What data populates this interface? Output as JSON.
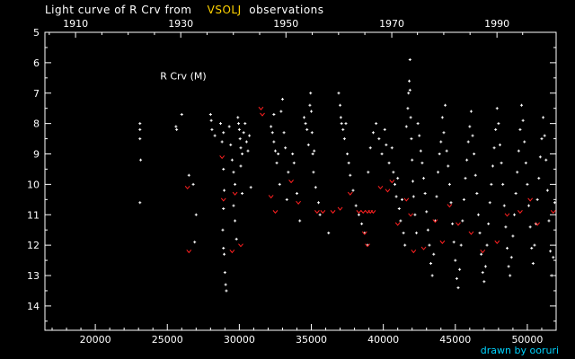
{
  "header": {
    "title_prefix": "Light curve of R Crv from",
    "title_source": "VSOLJ",
    "title_suffix": "observations"
  },
  "footer": {
    "credit": "drawn by ooruri"
  },
  "chart_data": {
    "type": "scatter",
    "title": "Light curve of R Crv from VSOLJ observations",
    "annotation": "R Crv (M)",
    "xlim": [
      16500,
      52000
    ],
    "ylim": [
      5,
      14.8
    ],
    "y_inverted": true,
    "x_ticks": [
      20000,
      25000,
      30000,
      35000,
      40000,
      45000,
      50000
    ],
    "x_tick_labels": [
      "20000",
      "25000",
      "30000",
      "35000",
      "40000",
      "45000",
      "50000"
    ],
    "top_ticks_jd": [
      18628,
      25933,
      33238,
      40587,
      47892
    ],
    "top_tick_labels": [
      "1910",
      "1930",
      "1950",
      "1970",
      "1990"
    ],
    "y_ticks": [
      5,
      6,
      7,
      8,
      9,
      10,
      11,
      12,
      13,
      14
    ],
    "y_tick_labels": [
      "5",
      "6",
      "7",
      "8",
      "9",
      "10",
      "11",
      "12",
      "13",
      "14"
    ],
    "colors": {
      "axis": "#ffffff",
      "observation": "#ffffff",
      "upper_limit": "#ff2020",
      "source": "#ffd300",
      "credit": "#00d4ff"
    },
    "series": [
      {
        "name": "observations",
        "marker": "dot",
        "points": [
          [
            23100,
            8.0
          ],
          [
            23100,
            8.2
          ],
          [
            23100,
            8.5
          ],
          [
            23150,
            9.2
          ],
          [
            23100,
            10.6
          ],
          [
            25600,
            8.1
          ],
          [
            25650,
            8.2
          ],
          [
            26000,
            7.7
          ],
          [
            26500,
            9.7
          ],
          [
            26800,
            10.0
          ],
          [
            27000,
            11.0
          ],
          [
            26900,
            11.9
          ],
          [
            28000,
            7.7
          ],
          [
            28050,
            7.9
          ],
          [
            28100,
            8.2
          ],
          [
            28300,
            8.4
          ],
          [
            28700,
            8.0
          ],
          [
            28800,
            8.6
          ],
          [
            28900,
            8.3
          ],
          [
            28900,
            9.5
          ],
          [
            28950,
            10.2
          ],
          [
            28900,
            10.8
          ],
          [
            28850,
            11.5
          ],
          [
            28900,
            12.1
          ],
          [
            28950,
            12.3
          ],
          [
            29000,
            12.9
          ],
          [
            29050,
            13.3
          ],
          [
            29100,
            13.5
          ],
          [
            29300,
            8.1
          ],
          [
            29400,
            8.7
          ],
          [
            29500,
            9.2
          ],
          [
            29600,
            9.6
          ],
          [
            29700,
            10.0
          ],
          [
            29600,
            10.7
          ],
          [
            29700,
            11.2
          ],
          [
            29800,
            11.8
          ],
          [
            29900,
            7.8
          ],
          [
            29950,
            8.0
          ],
          [
            30000,
            8.2
          ],
          [
            30050,
            8.5
          ],
          [
            30100,
            8.8
          ],
          [
            30200,
            9.0
          ],
          [
            30300,
            8.3
          ],
          [
            30400,
            8.0
          ],
          [
            30500,
            8.6
          ],
          [
            30600,
            8.9
          ],
          [
            30700,
            8.4
          ],
          [
            30100,
            9.4
          ],
          [
            30200,
            10.3
          ],
          [
            30800,
            10.1
          ],
          [
            32200,
            8.1
          ],
          [
            32300,
            8.3
          ],
          [
            32400,
            8.6
          ],
          [
            32500,
            8.9
          ],
          [
            32400,
            7.7
          ],
          [
            32600,
            9.3
          ],
          [
            32700,
            9.0
          ],
          [
            32900,
            7.6
          ],
          [
            33000,
            7.2
          ],
          [
            33100,
            8.3
          ],
          [
            33200,
            8.8
          ],
          [
            32800,
            10.0
          ],
          [
            33300,
            10.5
          ],
          [
            33400,
            9.6
          ],
          [
            33700,
            9.0
          ],
          [
            33800,
            9.3
          ],
          [
            34000,
            10.3
          ],
          [
            34200,
            11.2
          ],
          [
            34500,
            7.8
          ],
          [
            34600,
            8.0
          ],
          [
            34700,
            8.2
          ],
          [
            34800,
            8.7
          ],
          [
            34900,
            7.4
          ],
          [
            34950,
            7.0
          ],
          [
            35000,
            7.6
          ],
          [
            35050,
            8.3
          ],
          [
            35100,
            9.0
          ],
          [
            35150,
            9.6
          ],
          [
            35200,
            8.9
          ],
          [
            35300,
            10.1
          ],
          [
            35500,
            10.6
          ],
          [
            35600,
            11.0
          ],
          [
            36200,
            11.6
          ],
          [
            36900,
            7.0
          ],
          [
            37000,
            7.4
          ],
          [
            37050,
            7.8
          ],
          [
            37100,
            8.0
          ],
          [
            37200,
            8.2
          ],
          [
            37300,
            8.5
          ],
          [
            37400,
            8.0
          ],
          [
            37500,
            9.0
          ],
          [
            37600,
            9.3
          ],
          [
            37700,
            9.7
          ],
          [
            37900,
            10.2
          ],
          [
            38100,
            10.7
          ],
          [
            38300,
            11.0
          ],
          [
            38500,
            11.3
          ],
          [
            38700,
            11.6
          ],
          [
            38900,
            12.0
          ],
          [
            38950,
            9.6
          ],
          [
            39100,
            8.8
          ],
          [
            39300,
            8.3
          ],
          [
            39500,
            8.0
          ],
          [
            39700,
            8.5
          ],
          [
            39900,
            9.0
          ],
          [
            40100,
            8.2
          ],
          [
            40200,
            8.7
          ],
          [
            40400,
            9.3
          ],
          [
            40600,
            8.8
          ],
          [
            40700,
            9.6
          ],
          [
            40800,
            10.0
          ],
          [
            40900,
            10.4
          ],
          [
            41000,
            9.8
          ],
          [
            41100,
            10.8
          ],
          [
            41200,
            11.2
          ],
          [
            41300,
            10.5
          ],
          [
            41400,
            11.6
          ],
          [
            41500,
            12.0
          ],
          [
            41600,
            8.1
          ],
          [
            41700,
            7.5
          ],
          [
            41750,
            7.0
          ],
          [
            41800,
            6.6
          ],
          [
            41850,
            5.9
          ],
          [
            41850,
            6.9
          ],
          [
            41900,
            7.8
          ],
          [
            41950,
            8.5
          ],
          [
            42000,
            9.2
          ],
          [
            42050,
            9.9
          ],
          [
            42100,
            10.4
          ],
          [
            42200,
            11.0
          ],
          [
            42300,
            11.6
          ],
          [
            42400,
            8.0
          ],
          [
            42500,
            8.4
          ],
          [
            42600,
            8.9
          ],
          [
            42700,
            9.3
          ],
          [
            42800,
            9.8
          ],
          [
            42900,
            10.3
          ],
          [
            43000,
            10.9
          ],
          [
            43100,
            11.5
          ],
          [
            43200,
            12.0
          ],
          [
            43300,
            12.6
          ],
          [
            43400,
            13.0
          ],
          [
            43500,
            12.3
          ],
          [
            43600,
            11.2
          ],
          [
            43700,
            10.4
          ],
          [
            43800,
            9.6
          ],
          [
            43900,
            9.0
          ],
          [
            44000,
            8.6
          ],
          [
            44100,
            7.8
          ],
          [
            44200,
            8.3
          ],
          [
            44300,
            7.4
          ],
          [
            44400,
            8.9
          ],
          [
            44500,
            9.4
          ],
          [
            44600,
            10.0
          ],
          [
            44700,
            10.6
          ],
          [
            44800,
            11.3
          ],
          [
            44900,
            11.9
          ],
          [
            45000,
            12.5
          ],
          [
            45100,
            13.1
          ],
          [
            45200,
            13.4
          ],
          [
            45300,
            12.8
          ],
          [
            45400,
            12.0
          ],
          [
            45500,
            11.2
          ],
          [
            45600,
            10.5
          ],
          [
            45700,
            9.8
          ],
          [
            45800,
            9.2
          ],
          [
            45900,
            8.6
          ],
          [
            46000,
            8.1
          ],
          [
            46100,
            7.6
          ],
          [
            46200,
            8.4
          ],
          [
            46300,
            9.0
          ],
          [
            46400,
            9.7
          ],
          [
            46500,
            10.3
          ],
          [
            46600,
            11.0
          ],
          [
            46700,
            11.6
          ],
          [
            46800,
            12.3
          ],
          [
            46900,
            12.9
          ],
          [
            47000,
            13.2
          ],
          [
            47100,
            12.7
          ],
          [
            47200,
            12.0
          ],
          [
            47300,
            11.3
          ],
          [
            47400,
            10.6
          ],
          [
            47500,
            10.0
          ],
          [
            47600,
            9.4
          ],
          [
            47700,
            8.8
          ],
          [
            47800,
            8.2
          ],
          [
            47900,
            7.5
          ],
          [
            48000,
            8.0
          ],
          [
            48100,
            8.7
          ],
          [
            48200,
            9.3
          ],
          [
            48300,
            10.0
          ],
          [
            48400,
            10.7
          ],
          [
            48500,
            11.4
          ],
          [
            48600,
            12.1
          ],
          [
            48700,
            12.7
          ],
          [
            48800,
            13.0
          ],
          [
            48900,
            12.4
          ],
          [
            49000,
            11.7
          ],
          [
            49100,
            11.0
          ],
          [
            49200,
            10.3
          ],
          [
            49300,
            9.6
          ],
          [
            49400,
            8.9
          ],
          [
            49500,
            8.2
          ],
          [
            49600,
            7.4
          ],
          [
            49700,
            7.9
          ],
          [
            49800,
            8.6
          ],
          [
            49900,
            9.3
          ],
          [
            50000,
            10.0
          ],
          [
            50100,
            10.7
          ],
          [
            50200,
            11.4
          ],
          [
            50300,
            12.1
          ],
          [
            50400,
            12.6
          ],
          [
            50500,
            12.0
          ],
          [
            50600,
            11.3
          ],
          [
            50700,
            10.5
          ],
          [
            50800,
            9.8
          ],
          [
            50900,
            9.1
          ],
          [
            51000,
            8.5
          ],
          [
            51100,
            7.8
          ],
          [
            51200,
            8.4
          ],
          [
            51300,
            9.2
          ],
          [
            51400,
            10.2
          ],
          [
            51500,
            11.2
          ],
          [
            51600,
            12.2
          ],
          [
            51700,
            13.0
          ],
          [
            51800,
            12.4
          ],
          [
            51900,
            10.6
          ]
        ]
      },
      {
        "name": "upper limits",
        "marker": "v",
        "points": [
          [
            26400,
            10.1
          ],
          [
            26500,
            12.2
          ],
          [
            28800,
            9.1
          ],
          [
            28900,
            10.5
          ],
          [
            29500,
            12.2
          ],
          [
            29700,
            10.3
          ],
          [
            30100,
            12.0
          ],
          [
            31500,
            7.5
          ],
          [
            31600,
            7.7
          ],
          [
            32200,
            10.4
          ],
          [
            32500,
            10.9
          ],
          [
            33600,
            9.9
          ],
          [
            34100,
            10.6
          ],
          [
            35400,
            10.9
          ],
          [
            35800,
            10.9
          ],
          [
            36500,
            10.9
          ],
          [
            37000,
            10.8
          ],
          [
            37700,
            10.3
          ],
          [
            38300,
            10.9
          ],
          [
            38600,
            10.9
          ],
          [
            38900,
            10.9
          ],
          [
            39100,
            10.9
          ],
          [
            39300,
            10.9
          ],
          [
            38700,
            11.6
          ],
          [
            38900,
            12.0
          ],
          [
            39800,
            10.1
          ],
          [
            40300,
            10.2
          ],
          [
            40600,
            9.9
          ],
          [
            41000,
            11.3
          ],
          [
            41600,
            10.5
          ],
          [
            41900,
            11.0
          ],
          [
            42100,
            12.2
          ],
          [
            42800,
            12.1
          ],
          [
            43600,
            11.2
          ],
          [
            44100,
            11.9
          ],
          [
            44600,
            10.7
          ],
          [
            45200,
            11.3
          ],
          [
            46100,
            11.6
          ],
          [
            46900,
            12.2
          ],
          [
            47900,
            11.9
          ],
          [
            48600,
            11.0
          ],
          [
            49500,
            10.9
          ],
          [
            50200,
            10.5
          ],
          [
            50700,
            11.3
          ],
          [
            51800,
            10.9
          ]
        ]
      }
    ]
  }
}
